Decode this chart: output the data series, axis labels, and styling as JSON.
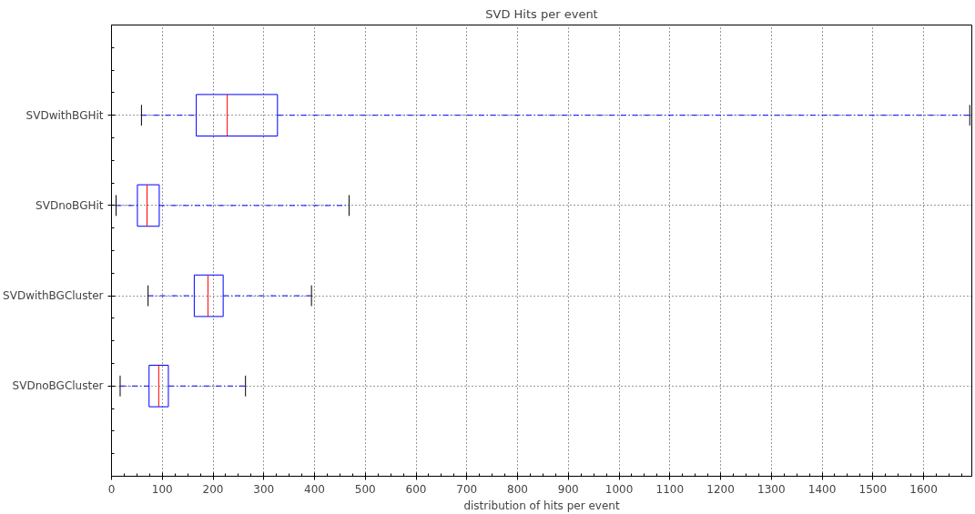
{
  "chart_data": {
    "type": "box",
    "title": "SVD Hits per event",
    "xlabel": "distribution of hits per event",
    "orientation": "horizontal",
    "categories": [
      "SVDwithBGHit",
      "SVDnoBGHit",
      "SVDwithBGCluster",
      "SVDnoBGCluster"
    ],
    "series": [
      {
        "color": "#0000ff",
        "boxes": [
          {
            "low": 59,
            "q1": 167,
            "median": 228,
            "q3": 327,
            "high": 1691
          },
          {
            "low": 9,
            "q1": 51,
            "median": 70,
            "q3": 94,
            "high": 468
          },
          {
            "low": 72,
            "q1": 163,
            "median": 190,
            "q3": 220,
            "high": 394
          },
          {
            "low": 17,
            "q1": 74,
            "median": 93,
            "q3": 112,
            "high": 264
          }
        ]
      }
    ],
    "xlim": [
      0,
      1695
    ],
    "xticks": [
      0,
      100,
      200,
      300,
      400,
      500,
      600,
      700,
      800,
      900,
      1000,
      1100,
      1200,
      1300,
      1400,
      1500,
      1600
    ],
    "grid": true
  }
}
